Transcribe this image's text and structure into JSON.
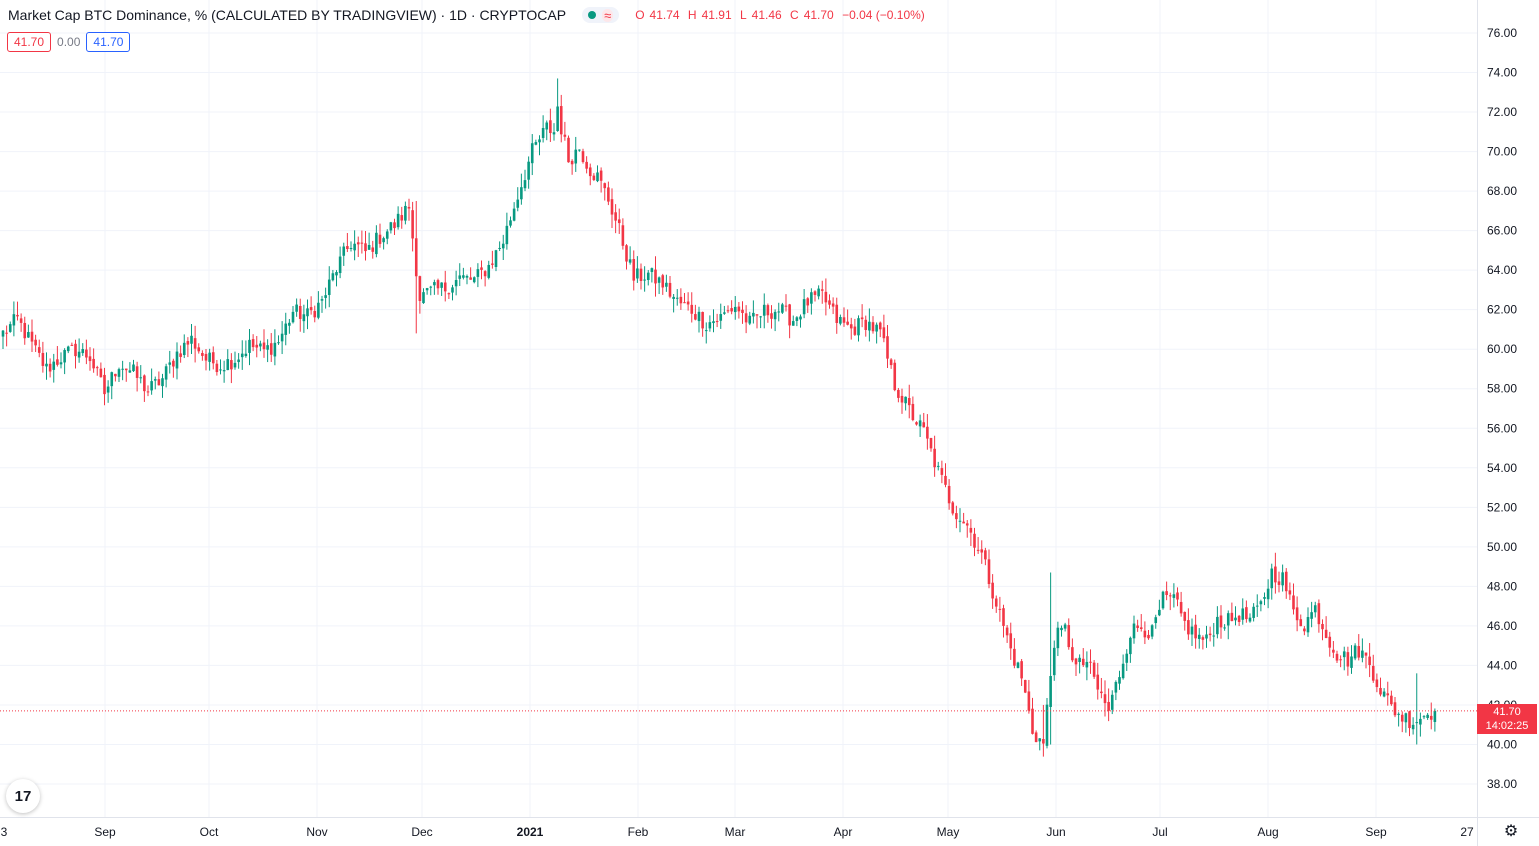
{
  "header": {
    "title": "Market Cap BTC Dominance, % (CALCULATED BY TRADINGVIEW) · 1D · CRYPTOCAP",
    "status_icons": [
      "market-open-dot-icon",
      "approximate-icon"
    ],
    "approx_glyph": "≈",
    "ohlc": {
      "o_label": "O",
      "o": "41.74",
      "h_label": "H",
      "h": "41.91",
      "l_label": "L",
      "l": "41.46",
      "c_label": "C",
      "c": "41.70",
      "change": "−0.04 (−0.10%)"
    }
  },
  "value_boxes": {
    "left": "41.70",
    "middle": "0.00",
    "right": "41.70"
  },
  "last_price_tag": {
    "price": "41.70",
    "countdown": "14:02:25"
  },
  "logo_text": "17",
  "settings_icon": "gear-icon",
  "colors": {
    "up": "#089981",
    "down": "#f23645",
    "grid": "#f0f3fa",
    "axis_text": "#131722"
  },
  "chart_data": {
    "type": "candlestick",
    "y_axis": {
      "min": 37,
      "max": 77,
      "ticks": [
        "76.00",
        "74.00",
        "72.00",
        "70.00",
        "68.00",
        "66.00",
        "64.00",
        "62.00",
        "60.00",
        "58.00",
        "56.00",
        "54.00",
        "52.00",
        "50.00",
        "48.00",
        "46.00",
        "44.00",
        "42.00",
        "40.00",
        "38.00"
      ],
      "position": "right"
    },
    "x_axis": {
      "labels": [
        "3",
        "Sep",
        "Oct",
        "Nov",
        "Dec",
        "2021",
        "Feb",
        "Mar",
        "Apr",
        "May",
        "Jun",
        "Jul",
        "Aug",
        "Sep",
        "27"
      ],
      "bold_label": "2021"
    },
    "last_price": 41.7,
    "grid": true,
    "close_anchors": [
      [
        0,
        60.8
      ],
      [
        4,
        61.5
      ],
      [
        8,
        60.2
      ],
      [
        12,
        59.0
      ],
      [
        16,
        59.6
      ],
      [
        20,
        60.0
      ],
      [
        24,
        59.6
      ],
      [
        28,
        57.8
      ],
      [
        32,
        59.3
      ],
      [
        36,
        58.8
      ],
      [
        40,
        57.9
      ],
      [
        44,
        58.5
      ],
      [
        48,
        59.8
      ],
      [
        52,
        60.5
      ],
      [
        56,
        59.5
      ],
      [
        60,
        59.2
      ],
      [
        64,
        59.5
      ],
      [
        68,
        60.2
      ],
      [
        72,
        59.9
      ],
      [
        76,
        60.4
      ],
      [
        80,
        61.9
      ],
      [
        84,
        61.7
      ],
      [
        88,
        62.4
      ],
      [
        92,
        64.1
      ],
      [
        96,
        65.4
      ],
      [
        100,
        64.9
      ],
      [
        104,
        65.7
      ],
      [
        108,
        66.3
      ],
      [
        112,
        67.2
      ],
      [
        115,
        62.6
      ],
      [
        118,
        62.9
      ],
      [
        122,
        63.1
      ],
      [
        126,
        63.6
      ],
      [
        130,
        63.5
      ],
      [
        134,
        64.2
      ],
      [
        138,
        65.5
      ],
      [
        142,
        67.8
      ],
      [
        146,
        70.0
      ],
      [
        150,
        71.2
      ],
      [
        152,
        71.0
      ],
      [
        153,
        72.3
      ],
      [
        154,
        71.2
      ],
      [
        156,
        69.6
      ],
      [
        159,
        70.2
      ],
      [
        162,
        69.1
      ],
      [
        164,
        68.7
      ],
      [
        167,
        67.6
      ],
      [
        170,
        66.0
      ],
      [
        174,
        63.6
      ],
      [
        178,
        63.8
      ],
      [
        182,
        63.3
      ],
      [
        186,
        62.4
      ],
      [
        190,
        62.0
      ],
      [
        194,
        61.3
      ],
      [
        198,
        61.6
      ],
      [
        202,
        62.2
      ],
      [
        206,
        61.3
      ],
      [
        210,
        61.9
      ],
      [
        214,
        62.0
      ],
      [
        218,
        61.5
      ],
      [
        222,
        62.4
      ],
      [
        226,
        62.7
      ],
      [
        230,
        61.5
      ],
      [
        234,
        61.0
      ],
      [
        238,
        61.4
      ],
      [
        242,
        60.8
      ],
      [
        246,
        58.2
      ],
      [
        250,
        56.9
      ],
      [
        254,
        55.8
      ],
      [
        258,
        53.8
      ],
      [
        262,
        52.0
      ],
      [
        266,
        51.1
      ],
      [
        270,
        49.6
      ],
      [
        274,
        47.2
      ],
      [
        278,
        44.8
      ],
      [
        281,
        43.4
      ],
      [
        284,
        40.7
      ],
      [
        287,
        40.0
      ],
      [
        290,
        45.3
      ],
      [
        293,
        45.8
      ],
      [
        296,
        43.9
      ],
      [
        299,
        44.2
      ],
      [
        302,
        42.8
      ],
      [
        305,
        41.7
      ],
      [
        308,
        43.6
      ],
      [
        311,
        45.7
      ],
      [
        314,
        46.0
      ],
      [
        317,
        45.6
      ],
      [
        320,
        47.3
      ],
      [
        323,
        47.3
      ],
      [
        326,
        46.1
      ],
      [
        329,
        45.5
      ],
      [
        332,
        45.2
      ],
      [
        335,
        46.3
      ],
      [
        338,
        46.2
      ],
      [
        341,
        46.6
      ],
      [
        344,
        46.3
      ],
      [
        347,
        47.0
      ],
      [
        350,
        48.7
      ],
      [
        353,
        48.4
      ],
      [
        356,
        46.7
      ],
      [
        359,
        46.1
      ],
      [
        362,
        46.9
      ],
      [
        365,
        45.6
      ],
      [
        368,
        44.6
      ],
      [
        371,
        44.3
      ],
      [
        374,
        44.8
      ],
      [
        377,
        44.1
      ],
      [
        380,
        42.8
      ],
      [
        383,
        41.9
      ],
      [
        386,
        41.4
      ],
      [
        389,
        41.2
      ],
      [
        392,
        41.5
      ],
      [
        395,
        41.7
      ]
    ],
    "wick_spikes": [
      [
        114,
        67.5,
        60.8
      ],
      [
        153,
        73.7,
        71.0
      ],
      [
        289,
        48.7,
        40.0
      ],
      [
        287,
        42.0,
        39.7
      ],
      [
        390,
        43.6,
        40.0
      ]
    ]
  }
}
